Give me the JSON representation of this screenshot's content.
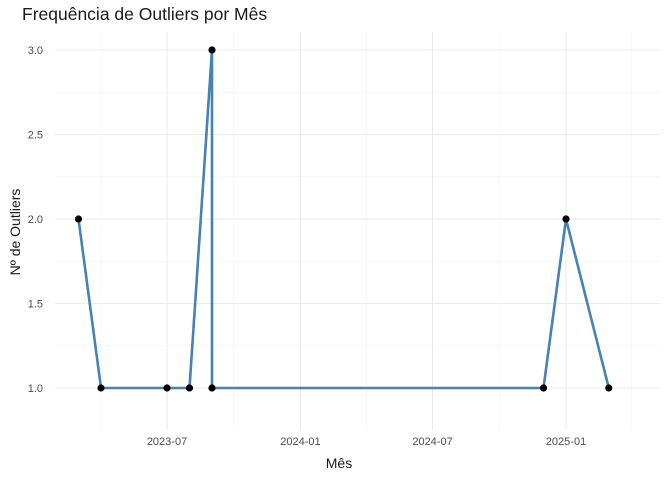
{
  "chart_data": {
    "type": "line",
    "title": "Frequência de Outliers por Mês",
    "xlabel": "Mês",
    "ylabel": "Nº de Outliers",
    "x_axis_type": "date",
    "x_ticks": [
      "2023-07",
      "2024-01",
      "2024-07",
      "2025-01"
    ],
    "y_ticks": [
      "1.0",
      "1.5",
      "2.0",
      "2.5",
      "3.0"
    ],
    "ylim": [
      1.0,
      3.0
    ],
    "series": [
      {
        "color": "#4682B4",
        "marker_color": "#000000",
        "points": [
          {
            "x": "2023-03-01",
            "y": 2
          },
          {
            "x": "2023-04-01",
            "y": 1
          },
          {
            "x": "2023-07-01",
            "y": 1
          },
          {
            "x": "2023-08-01",
            "y": 1
          },
          {
            "x": "2023-09-01",
            "y": 3
          },
          {
            "x": "2023-09-01",
            "y": 1
          },
          {
            "x": "2024-12-01",
            "y": 1
          },
          {
            "x": "2025-01-01",
            "y": 2
          },
          {
            "x": "2025-03-01",
            "y": 1
          }
        ]
      }
    ],
    "grid": true,
    "legend": "none"
  }
}
